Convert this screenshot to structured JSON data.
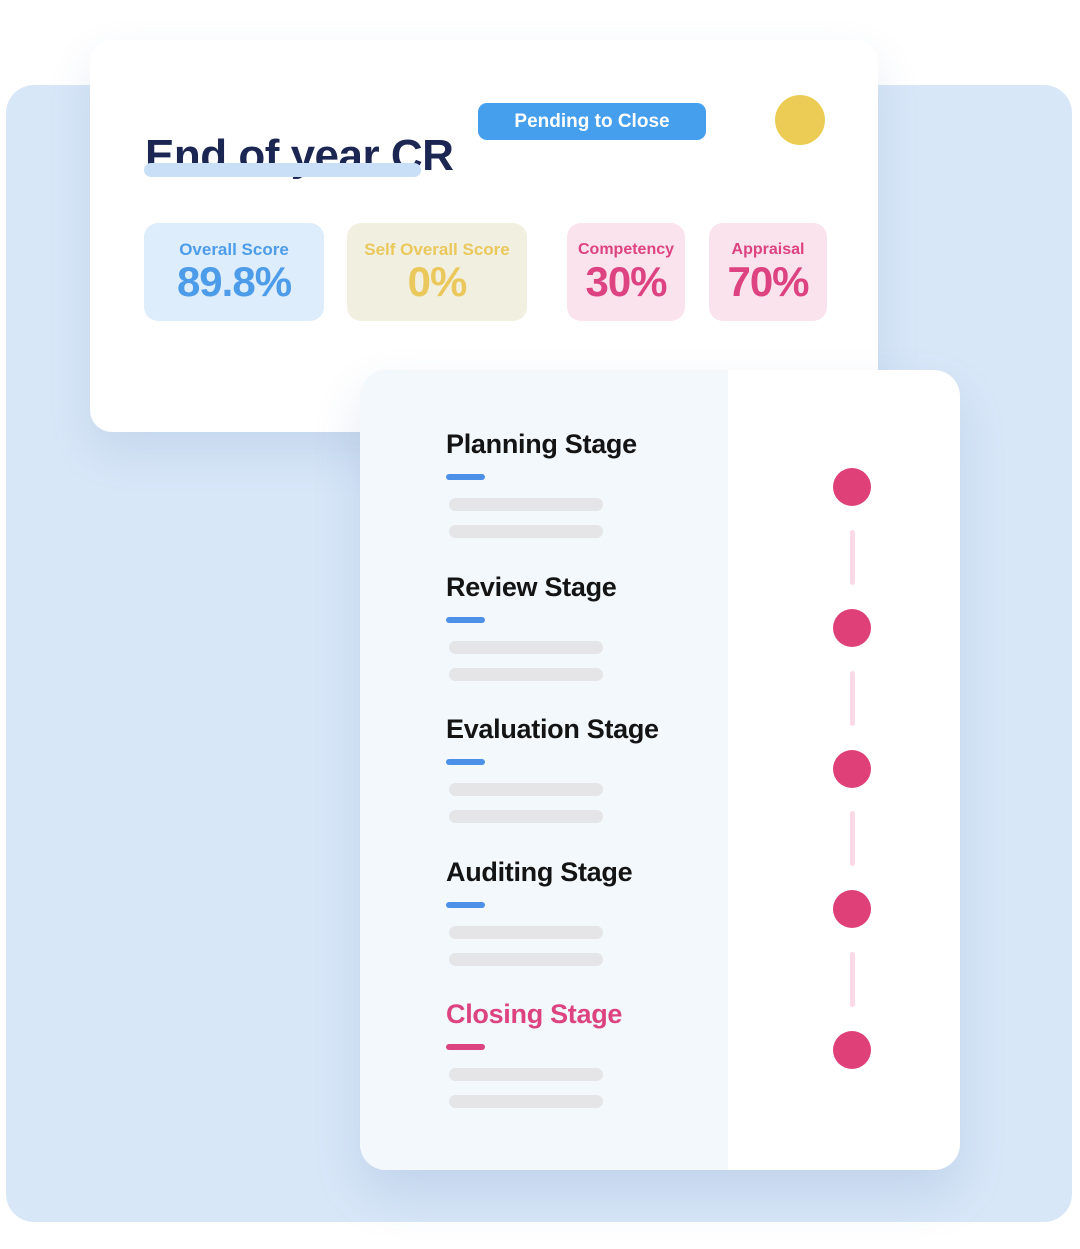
{
  "colors": {
    "background_panel": "#D8E7F8",
    "badge_blue": "#459FED",
    "title_navy": "#1B2653",
    "title_underline": "#C8DFF7",
    "avatar_yellow": "#EDCC56",
    "score_blue": "#4D9CE9",
    "score_yellow": "#EAC85C",
    "score_pink": "#DC4380",
    "stage_underline_blue": "#4D90E8",
    "stage_pink": "#DC4380",
    "timeline_dot": "#DE4077",
    "timeline_connector": "#FBD9E6",
    "placeholder_gray": "#E5E5E7"
  },
  "card1": {
    "title": "End of year CR",
    "status_badge": "Pending to Close",
    "scores": [
      {
        "label": "Overall Score",
        "value": "89.8%",
        "theme": "blue"
      },
      {
        "label": "Self Overall Score",
        "value": "0%",
        "theme": "yellow"
      },
      {
        "label": "Competency",
        "value": "30%",
        "theme": "pink"
      },
      {
        "label": "Appraisal",
        "value": "70%",
        "theme": "pink"
      }
    ]
  },
  "card2": {
    "stages": [
      {
        "label": "Planning Stage",
        "accent": "blue"
      },
      {
        "label": "Review Stage",
        "accent": "blue"
      },
      {
        "label": "Evaluation Stage",
        "accent": "blue"
      },
      {
        "label": "Auditing Stage",
        "accent": "blue"
      },
      {
        "label": "Closing Stage",
        "accent": "pink"
      }
    ],
    "timeline": {
      "dot_count": 5,
      "dot_color": "#DE4077",
      "connector_color": "#FBD9E6"
    }
  }
}
